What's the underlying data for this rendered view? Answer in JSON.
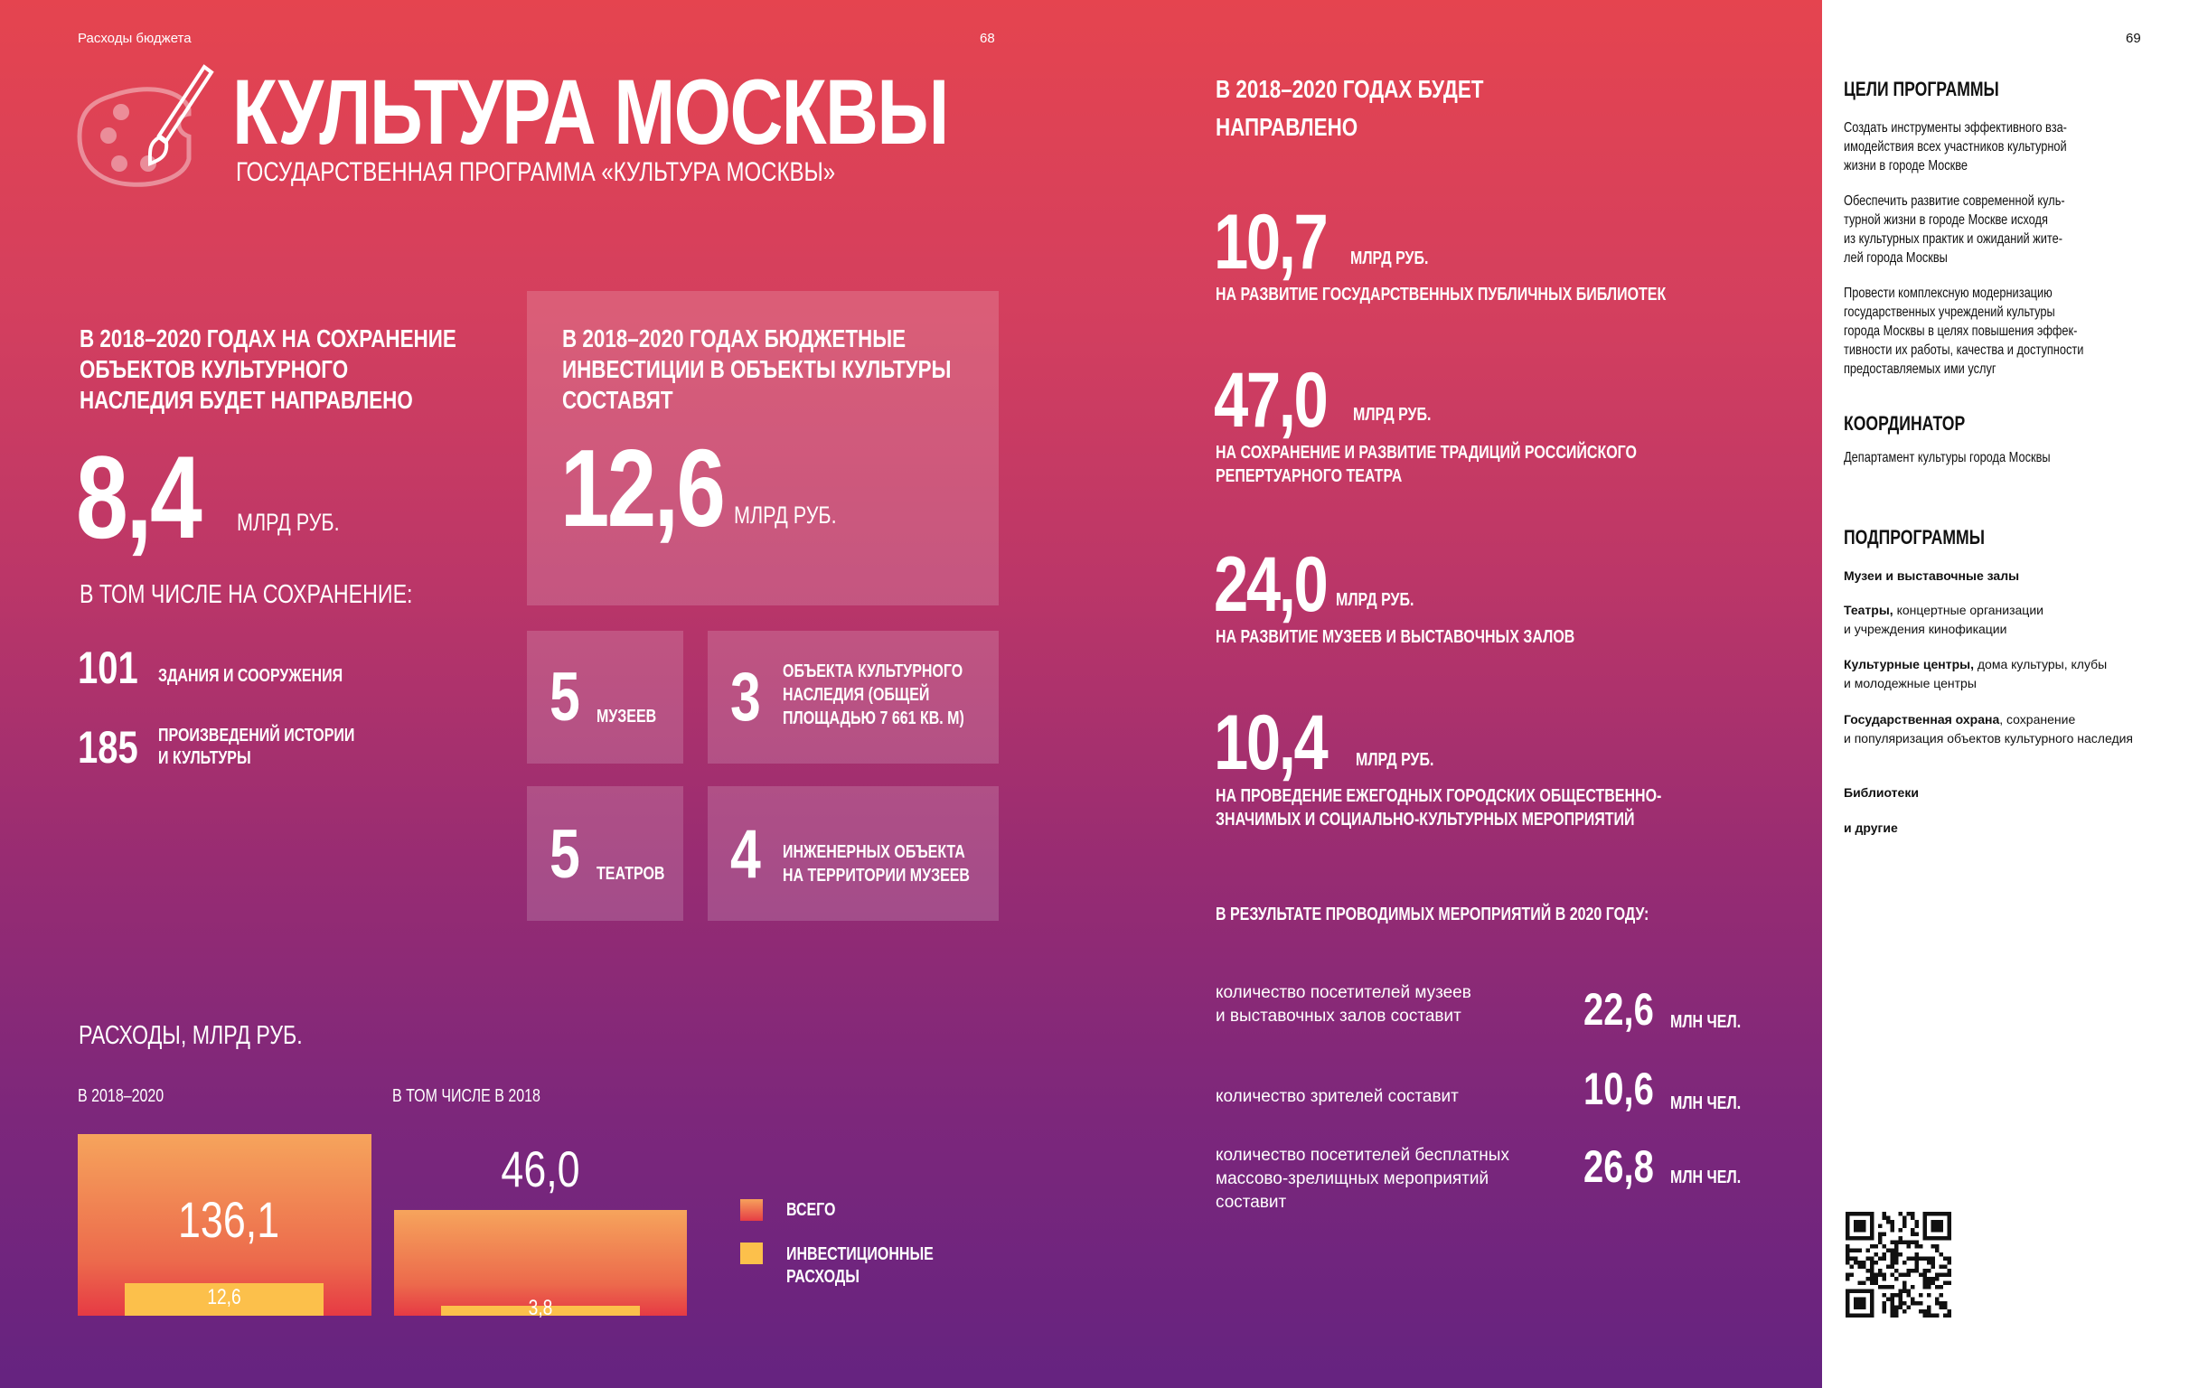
{
  "header": {
    "section": "Расходы бюджета",
    "page_left": "68",
    "page_right": "69"
  },
  "title": {
    "main": "КУЛЬТУРА МОСКВЫ",
    "subtitle": "ГОСУДАРСТВЕННАЯ ПРОГРАММА «КУЛЬТУРА МОСКВЫ»"
  },
  "heritage": {
    "heading": [
      "В 2018–2020 ГОДАХ НА СОХРАНЕНИЕ",
      "ОБЪЕКТОВ КУЛЬТУРНОГО",
      "НАСЛЕДИЯ БУДЕТ НАПРАВЛЕНО"
    ],
    "value": "8,4",
    "unit": "МЛРД РУБ.",
    "sub": "В ТОМ ЧИСЛЕ НА СОХРАНЕНИЕ:",
    "items": [
      {
        "value": "101",
        "label": [
          "ЗДАНИЯ И СООРУЖЕНИЯ"
        ]
      },
      {
        "value": "185",
        "label": [
          "ПРОИЗВЕДЕНИЙ ИСТОРИИ",
          "И КУЛЬТУРЫ"
        ]
      }
    ]
  },
  "investments": {
    "heading": [
      "В 2018–2020 ГОДАХ БЮДЖЕТНЫЕ",
      "ИНВЕСТИЦИИ В ОБЪЕКТЫ КУЛЬТУРЫ",
      "СОСТАВЯТ"
    ],
    "value": "12,6",
    "unit": "МЛРД РУБ.",
    "tiles": [
      {
        "value": "5",
        "label": [
          "МУЗЕЕВ"
        ]
      },
      {
        "value": "3",
        "label": [
          "ОБЪЕКТА КУЛЬТУРНОГО",
          "НАСЛЕДИЯ (ОБЩЕЙ",
          "ПЛОЩАДЬЮ 7 661 КВ. М)"
        ]
      },
      {
        "value": "5",
        "label": [
          "ТЕАТРОВ"
        ]
      },
      {
        "value": "4",
        "label": [
          "ИНЖЕНЕРНЫХ ОБЪЕКТА",
          "НА ТЕРРИТОРИИ МУЗЕЕВ"
        ]
      }
    ]
  },
  "chart_data": {
    "type": "bar",
    "title": "РАСХОДЫ, МЛРД РУБ.",
    "categories": [
      "В 2018–2020",
      "В ТОМ ЧИСЛЕ В 2018"
    ],
    "series": [
      {
        "name": "ВСЕГО",
        "values": [
          136.1,
          46.0
        ],
        "labels": [
          "136,1",
          "46,0"
        ],
        "color": "#f0614b"
      },
      {
        "name": "ИНВЕСТИЦИОННЫЕ РАСХОДЫ",
        "values": [
          12.6,
          3.8
        ],
        "labels": [
          "12,6",
          "3,8"
        ],
        "color": "#fcc04b"
      }
    ],
    "legend": [
      "ВСЕГО",
      [
        "ИНВЕСТИЦИОННЫЕ",
        "РАСХОДЫ"
      ]
    ],
    "legend_position": "right"
  },
  "directions": {
    "heading": [
      "В 2018–2020 ГОДАХ БУДЕТ",
      "НАПРАВЛЕНО"
    ],
    "items": [
      {
        "value": "10,7",
        "unit": "МЛРД РУБ.",
        "desc": [
          "НА РАЗВИТИЕ  ГОСУДАРСТВЕННЫХ ПУБЛИЧНЫХ БИБЛИОТЕК"
        ]
      },
      {
        "value": "47,0",
        "unit": "МЛРД РУБ.",
        "desc": [
          "НА СОХРАНЕНИЕ И РАЗВИТИЕ ТРАДИЦИЙ РОССИЙСКОГО",
          "РЕПЕРТУАРНОГО ТЕАТРА"
        ]
      },
      {
        "value": "24,0",
        "unit": "МЛРД РУБ.",
        "desc": [
          "НА РАЗВИТИЕ МУЗЕЕВ И ВЫСТАВОЧНЫХ ЗАЛОВ"
        ]
      },
      {
        "value": "10,4",
        "unit": "МЛРД РУБ.",
        "desc": [
          "НА ПРОВЕДЕНИЕ ЕЖЕГОДНЫХ ГОРОДСКИХ ОБЩЕСТВЕННО-",
          "ЗНАЧИМЫХ И СОЦИАЛЬНО-КУЛЬТУРНЫХ МЕРОПРИЯТИЙ"
        ]
      }
    ]
  },
  "results": {
    "heading": "В РЕЗУЛЬТАТЕ ПРОВОДИМЫХ МЕРОПРИЯТИЙ В 2020 ГОДУ:",
    "items": [
      {
        "text": [
          "количество посетителей музеев",
          "и выставочных залов составит"
        ],
        "value": "22,6",
        "unit": "МЛН ЧЕЛ."
      },
      {
        "text": [
          "количество зрителей составит"
        ],
        "value": "10,6",
        "unit": "МЛН ЧЕЛ."
      },
      {
        "text": [
          "количество посетителей бесплатных",
          "массово-зрелищных мероприятий",
          "составит"
        ],
        "value": "26,8",
        "unit": "МЛН ЧЕЛ."
      }
    ]
  },
  "sidebar": {
    "goals_title": "ЦЕЛИ ПРОГРАММЫ",
    "goals": [
      [
        "Создать инструменты эффективного вза-",
        "имодействия всех участников культурной",
        "жизни в городе Москве"
      ],
      [
        "Обеспечить развитие современной куль-",
        "турной жизни в городе Москве исходя",
        "из культурных практик и ожиданий жите-",
        "лей города Москвы"
      ],
      [
        "Провести комплексную модернизацию",
        "государственных учреждений культуры",
        "города Москвы в целях повышения эффек-",
        "тивности их работы, качества и доступности",
        "предоставляемых ими услуг"
      ]
    ],
    "coordinator_title": "КООРДИНАТОР",
    "coordinator": "Департамент культуры города Москвы",
    "subprograms_title": "ПОДПРОГРАММЫ",
    "subprograms": [
      {
        "bold": "Музеи и выставочные залы",
        "rest": [
          "",
          ""
        ]
      },
      {
        "bold": "Театры,",
        "rest": [
          " концертные организации",
          "и учреждения кинофикации"
        ]
      },
      {
        "bold": "Культурные центры,",
        "rest": [
          " дома культуры, клубы",
          "и молодежные центры"
        ]
      },
      {
        "bold": "Государственная охрана",
        "rest": [
          ", сохранение",
          "и популяризация объектов культурного наследия"
        ]
      },
      {
        "bold": "Библиотеки",
        "rest": [
          "",
          ""
        ]
      },
      {
        "bold": "и другие",
        "rest": [
          "",
          ""
        ]
      }
    ]
  }
}
